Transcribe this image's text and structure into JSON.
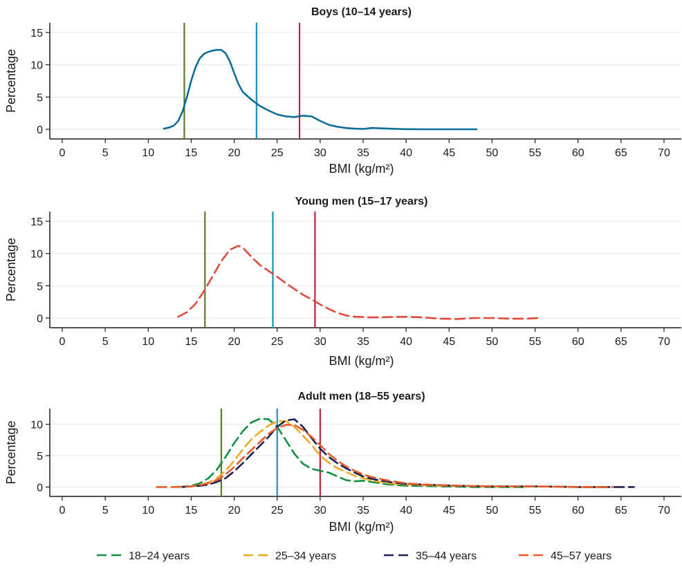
{
  "chart_data": [
    {
      "type": "line",
      "title": "Boys (10–14 years)",
      "xlabel": "BMI (kg/m²)",
      "ylabel": "Percentage",
      "xlim": [
        0,
        70
      ],
      "ylim": [
        -1.5,
        16.5
      ],
      "xticks": [
        "0",
        "5",
        "10",
        "15",
        "20",
        "25",
        "30",
        "35",
        "40",
        "45",
        "50",
        "55",
        "60",
        "65",
        "70"
      ],
      "yticks": [
        "0",
        "5",
        "10",
        "15"
      ],
      "grid": true,
      "vlines": [
        {
          "x": 14.2,
          "color": "#5a7a2a"
        },
        {
          "x": 22.6,
          "color": "#1a8fc0"
        },
        {
          "x": 27.6,
          "color": "#c0203a"
        }
      ],
      "series": [
        {
          "color": "#0b6e99",
          "dash": "solid",
          "x": [
            11.8,
            12.5,
            13,
            13.5,
            14,
            14.5,
            15,
            15.5,
            16,
            16.5,
            17,
            17.5,
            18,
            18.5,
            19,
            19.5,
            20,
            20.5,
            21,
            22,
            23,
            24,
            25,
            26,
            27,
            28,
            29,
            30,
            31,
            32,
            33,
            34,
            35,
            36,
            37,
            38,
            39,
            40,
            42,
            44,
            46,
            48.2
          ],
          "y": [
            0.1,
            0.3,
            0.6,
            1.3,
            2.8,
            5,
            7.5,
            9.6,
            11,
            11.7,
            12,
            12.2,
            12.3,
            12.3,
            11.8,
            10.5,
            8.7,
            7,
            5.8,
            4.6,
            3.6,
            2.9,
            2.3,
            2,
            1.9,
            2.1,
            2,
            1.3,
            0.7,
            0.4,
            0.2,
            0.1,
            0.05,
            0.2,
            0.15,
            0.1,
            0.05,
            0.02,
            0,
            0,
            0,
            0
          ]
        }
      ]
    },
    {
      "type": "line",
      "title": "Young men (15–17 years)",
      "xlabel": "BMI (kg/m²)",
      "ylabel": "Percentage",
      "xlim": [
        0,
        70
      ],
      "ylim": [
        -1.5,
        16.5
      ],
      "xticks": [
        "0",
        "5",
        "10",
        "15",
        "20",
        "25",
        "30",
        "35",
        "40",
        "45",
        "50",
        "55",
        "60",
        "65",
        "70"
      ],
      "yticks": [
        "0",
        "5",
        "10",
        "15"
      ],
      "grid": true,
      "vlines": [
        {
          "x": 16.6,
          "color": "#5a7a2a"
        },
        {
          "x": 24.5,
          "color": "#1a8fc0"
        },
        {
          "x": 29.4,
          "color": "#c0203a"
        }
      ],
      "series": [
        {
          "color": "#e04a3a",
          "dash": "dashed",
          "x": [
            13.5,
            14.5,
            15.5,
            16.5,
            17.5,
            18.5,
            19.5,
            20.5,
            21,
            22,
            23,
            24,
            25,
            26,
            27,
            28,
            29,
            30,
            31,
            32,
            33,
            34,
            35,
            36,
            38,
            40,
            42,
            44,
            46,
            48,
            50,
            52,
            54,
            55.3
          ],
          "y": [
            0.2,
            0.9,
            2.2,
            4.2,
            6.5,
            8.8,
            10.6,
            11.2,
            10.9,
            9.5,
            8.2,
            7.3,
            6.4,
            5.4,
            4.5,
            3.6,
            2.9,
            2.1,
            1.4,
            0.8,
            0.4,
            0.2,
            0.15,
            0.1,
            0.15,
            0.2,
            0.1,
            -0.1,
            -0.15,
            0,
            0,
            -0.1,
            -0.1,
            0
          ]
        }
      ]
    },
    {
      "type": "line",
      "title": "Adult men (18–55 years)",
      "xlabel": "BMI (kg/m²)",
      "ylabel": "Percentage",
      "xlim": [
        0,
        70
      ],
      "ylim": [
        -1.5,
        12.5
      ],
      "xticks": [
        "0",
        "5",
        "10",
        "15",
        "20",
        "25",
        "30",
        "35",
        "40",
        "45",
        "50",
        "55",
        "60",
        "65",
        "70"
      ],
      "yticks": [
        "0",
        "5",
        "10"
      ],
      "grid": true,
      "legend": "bottom",
      "vlines": [
        {
          "x": 18.5,
          "color": "#5a7a2a"
        },
        {
          "x": 25,
          "color": "#1a8fc0"
        },
        {
          "x": 30,
          "color": "#c0203a"
        }
      ],
      "series": [
        {
          "name": "18–24 years",
          "color": "#0e9040",
          "dash": "dashed",
          "x": [
            13.5,
            15,
            16,
            17,
            18,
            19,
            20,
            21,
            22,
            23,
            24,
            25,
            26,
            27,
            28,
            29,
            30,
            31,
            32,
            33,
            34,
            35,
            36,
            38,
            40,
            42,
            44,
            46,
            48,
            50,
            52,
            54
          ],
          "y": [
            0,
            0.2,
            0.6,
            1.4,
            2.8,
            4.8,
            7,
            8.9,
            10.3,
            10.9,
            10.8,
            9.6,
            7.5,
            5.3,
            3.7,
            2.9,
            2.6,
            2.3,
            1.7,
            1.1,
            0.9,
            1.0,
            0.8,
            0.4,
            0.2,
            0.15,
            0.1,
            0.05,
            0,
            0,
            0,
            0
          ]
        },
        {
          "name": "25–34 years",
          "color": "#f0a820",
          "dash": "dashed",
          "x": [
            13,
            15,
            16,
            17,
            18,
            19,
            20,
            21,
            22,
            23,
            24,
            25,
            26,
            27,
            28,
            29,
            30,
            31,
            32,
            33,
            34,
            35,
            36,
            38,
            40,
            42,
            44,
            46,
            50,
            55,
            60,
            63
          ],
          "y": [
            0,
            0.1,
            0.3,
            0.7,
            1.4,
            2.6,
            4.2,
            6,
            7.6,
            8.8,
            9.8,
            10.5,
            10.5,
            9.6,
            8.2,
            6.7,
            5,
            3.9,
            3,
            2.4,
            1.8,
            1.4,
            1.0,
            0.6,
            0.4,
            0.3,
            0.2,
            0.2,
            0.1,
            0.1,
            0,
            0
          ]
        },
        {
          "name": "35–44 years",
          "color": "#1c2050",
          "dash": "dashed",
          "x": [
            14,
            16,
            17,
            18,
            19,
            20,
            21,
            22,
            23,
            24,
            25,
            26,
            27,
            28,
            29,
            30,
            31,
            32,
            33,
            34,
            35,
            36,
            38,
            40,
            42,
            44,
            46,
            50,
            55,
            60,
            64,
            66.5
          ],
          "y": [
            0,
            0.2,
            0.4,
            0.8,
            1.4,
            2.5,
            3.8,
            5.2,
            6.6,
            8,
            9.6,
            10.6,
            10.8,
            9.6,
            7.8,
            6.1,
            4.8,
            3.8,
            3,
            2.3,
            1.7,
            1.3,
            0.8,
            0.5,
            0.4,
            0.3,
            0.2,
            0.1,
            0.1,
            0,
            0,
            0
          ]
        },
        {
          "name": "45–57 years",
          "color": "#e8582a",
          "dash": "dashed",
          "x": [
            11,
            13,
            15,
            16,
            17,
            18,
            19,
            20,
            21,
            22,
            23,
            24,
            25,
            26,
            27,
            28,
            29,
            30,
            31,
            32,
            33,
            34,
            35,
            36,
            38,
            40,
            42,
            44,
            46,
            50,
            55,
            60,
            64
          ],
          "y": [
            0,
            0,
            0.1,
            0.3,
            0.6,
            1.1,
            2,
            3.2,
            4.6,
            5.9,
            7.2,
            8.5,
            9.4,
            9.9,
            9.9,
            9.1,
            8,
            6.7,
            5.3,
            4.2,
            3.3,
            2.6,
            2,
            1.6,
            1,
            0.6,
            0.4,
            0.3,
            0.2,
            0.1,
            0.1,
            0,
            0
          ]
        }
      ]
    }
  ]
}
